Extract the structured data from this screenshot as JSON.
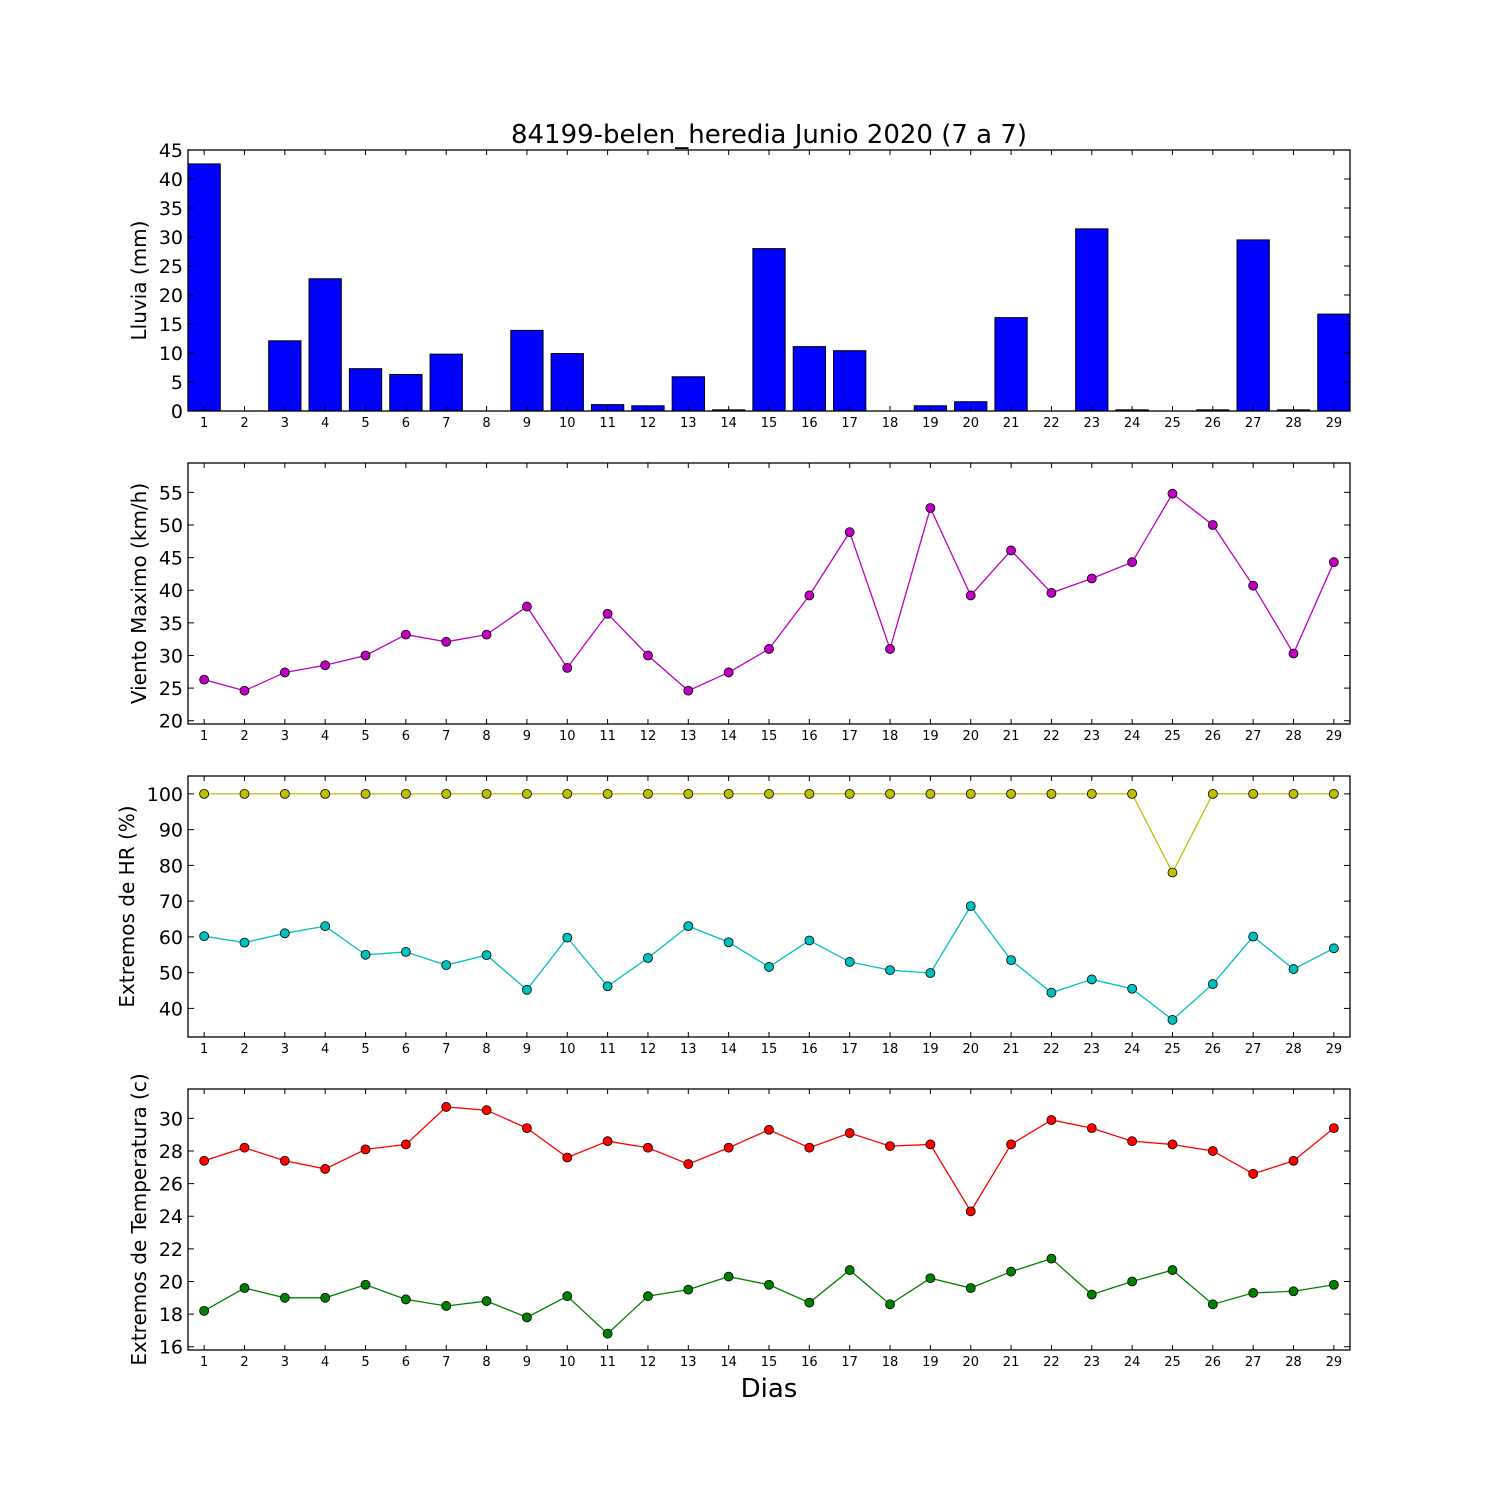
{
  "figure": {
    "title": "84199-belen_heredia Junio 2020  (7 a 7)",
    "xlabel": "Dias"
  },
  "chart_data": [
    {
      "type": "bar",
      "ylabel": "Lluvia (mm)",
      "ylim": [
        0,
        45
      ],
      "yticks": [
        0,
        5,
        10,
        15,
        20,
        25,
        30,
        35,
        40,
        45
      ],
      "categories": [
        "1",
        "2",
        "3",
        "4",
        "5",
        "6",
        "7",
        "8",
        "9",
        "10",
        "11",
        "12",
        "13",
        "14",
        "15",
        "16",
        "17",
        "18",
        "19",
        "20",
        "21",
        "22",
        "23",
        "24",
        "25",
        "26",
        "27",
        "28",
        "29"
      ],
      "color": "#0000ff",
      "values": [
        42.6,
        0,
        12.1,
        22.8,
        7.3,
        6.3,
        9.8,
        0,
        13.9,
        9.9,
        1.1,
        0.9,
        5.9,
        0.2,
        28.0,
        11.1,
        10.4,
        0,
        0.9,
        1.6,
        16.1,
        0,
        31.4,
        0.2,
        0,
        0.2,
        29.5,
        0.2,
        16.7
      ],
      "grid": false
    },
    {
      "type": "line",
      "ylabel": "Viento Maximo (km/h)",
      "ylim": [
        19.5,
        59.5
      ],
      "yticks": [
        20,
        25,
        30,
        35,
        40,
        45,
        50,
        55
      ],
      "x": [
        1,
        2,
        3,
        4,
        5,
        6,
        7,
        8,
        9,
        10,
        11,
        12,
        13,
        14,
        15,
        16,
        17,
        18,
        19,
        20,
        21,
        22,
        23,
        24,
        25,
        26,
        27,
        28,
        29
      ],
      "series": [
        {
          "color": "#bf00bf",
          "values": [
            26.3,
            24.6,
            27.4,
            28.5,
            30.0,
            33.2,
            32.1,
            33.2,
            37.5,
            28.1,
            36.4,
            30.0,
            24.6,
            27.4,
            31.0,
            39.2,
            48.9,
            31.0,
            52.6,
            39.2,
            46.1,
            39.6,
            41.8,
            44.3,
            54.8,
            50.0,
            40.7,
            30.3,
            44.3
          ]
        }
      ],
      "grid": false
    },
    {
      "type": "line",
      "ylabel": "Extremos de HR (%)",
      "ylim": [
        32,
        105
      ],
      "yticks": [
        40,
        50,
        60,
        70,
        80,
        90,
        100
      ],
      "x": [
        1,
        2,
        3,
        4,
        5,
        6,
        7,
        8,
        9,
        10,
        11,
        12,
        13,
        14,
        15,
        16,
        17,
        18,
        19,
        20,
        21,
        22,
        23,
        24,
        25,
        26,
        27,
        28,
        29
      ],
      "series": [
        {
          "color": "#bfbf00",
          "values": [
            100,
            100,
            100,
            100,
            100,
            100,
            100,
            100,
            100,
            100,
            100,
            100,
            100,
            100,
            100,
            100,
            100,
            100,
            100,
            100,
            100,
            100,
            100,
            100,
            78,
            100,
            100,
            100,
            100
          ]
        },
        {
          "color": "#00bfbf",
          "values": [
            60.2,
            58.4,
            61.0,
            63.0,
            55.0,
            55.8,
            52.1,
            54.9,
            45.2,
            59.8,
            46.2,
            54.1,
            63.0,
            58.5,
            51.6,
            59.0,
            53.0,
            50.7,
            49.9,
            68.6,
            53.5,
            44.4,
            48.1,
            45.5,
            36.8,
            46.8,
            60.1,
            51.0,
            56.8
          ]
        }
      ],
      "grid": false
    },
    {
      "type": "line",
      "ylabel": "Extremos de Temperatura (c)",
      "ylim": [
        15.8,
        31.8
      ],
      "yticks": [
        16,
        18,
        20,
        22,
        24,
        26,
        28,
        30
      ],
      "x": [
        1,
        2,
        3,
        4,
        5,
        6,
        7,
        8,
        9,
        10,
        11,
        12,
        13,
        14,
        15,
        16,
        17,
        18,
        19,
        20,
        21,
        22,
        23,
        24,
        25,
        26,
        27,
        28,
        29
      ],
      "series": [
        {
          "color": "#ff0000",
          "values": [
            27.4,
            28.2,
            27.4,
            26.9,
            28.1,
            28.4,
            30.7,
            30.5,
            29.4,
            27.6,
            28.6,
            28.2,
            27.2,
            28.2,
            29.3,
            28.2,
            29.1,
            28.3,
            28.4,
            24.3,
            28.4,
            29.9,
            29.4,
            28.6,
            28.4,
            28.0,
            26.6,
            27.4,
            29.4
          ]
        },
        {
          "color": "#008000",
          "values": [
            18.2,
            19.6,
            19.0,
            19.0,
            19.8,
            18.9,
            18.5,
            18.8,
            17.8,
            19.1,
            16.8,
            19.1,
            19.5,
            20.3,
            19.8,
            18.7,
            20.7,
            18.6,
            20.2,
            19.6,
            20.6,
            21.4,
            19.2,
            20.0,
            20.7,
            18.6,
            19.3,
            19.4,
            19.8
          ]
        }
      ],
      "grid": false
    }
  ]
}
